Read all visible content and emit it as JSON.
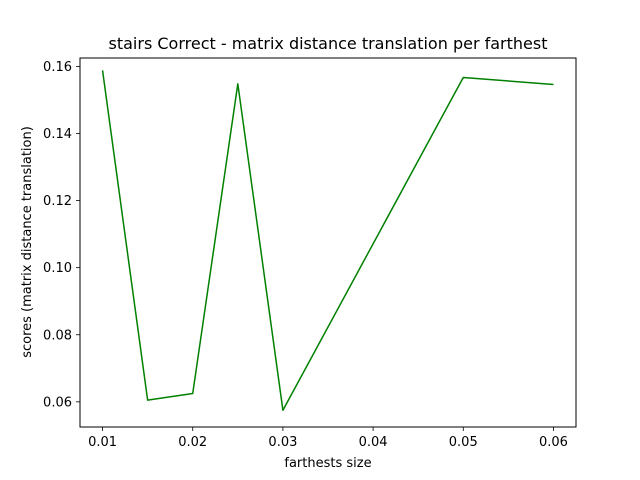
{
  "chart_data": {
    "type": "line",
    "title": "stairs Correct - matrix distance translation per farthest",
    "xlabel": "farthests size",
    "ylabel": "scores (matrix distance translation)",
    "xlim": [
      0.0075,
      0.0625
    ],
    "ylim": [
      0.0525,
      0.1625
    ],
    "xticks": [
      0.01,
      0.02,
      0.03,
      0.04,
      0.05,
      0.06
    ],
    "xtick_labels": [
      "0.01",
      "0.02",
      "0.03",
      "0.04",
      "0.05",
      "0.06"
    ],
    "yticks": [
      0.06,
      0.08,
      0.1,
      0.12,
      0.14,
      0.16
    ],
    "ytick_labels": [
      "0.06",
      "0.08",
      "0.10",
      "0.12",
      "0.14",
      "0.16"
    ],
    "grid": false,
    "series": [
      {
        "color": "#008000",
        "x": [
          0.01,
          0.015,
          0.02,
          0.025,
          0.03,
          0.05,
          0.06
        ],
        "y": [
          0.1588,
          0.0605,
          0.0625,
          0.1548,
          0.0575,
          0.1567,
          0.1546
        ]
      }
    ]
  }
}
